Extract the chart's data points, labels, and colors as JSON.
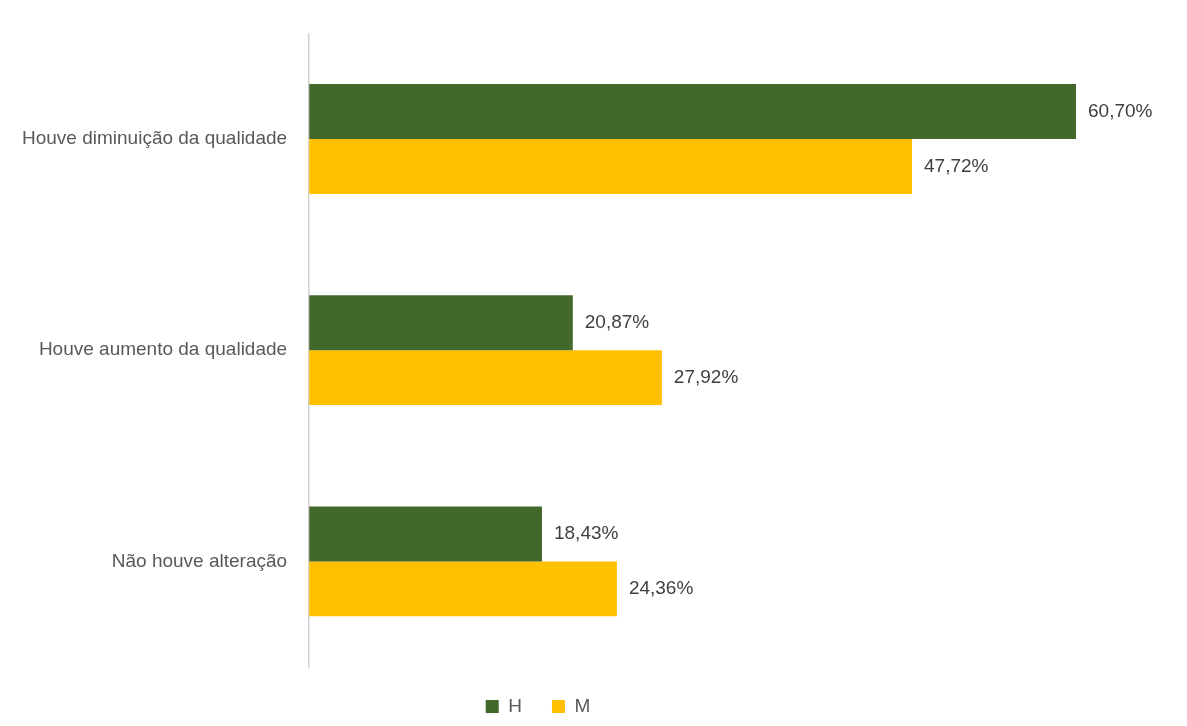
{
  "chart_data": {
    "type": "bar",
    "orientation": "horizontal",
    "categories": [
      "Houve diminuição da qualidade",
      "Houve aumento da qualidade",
      "Não houve alteração"
    ],
    "series": [
      {
        "name": "H",
        "color": "#43682b",
        "values": [
          60.7,
          20.87,
          18.43
        ],
        "value_labels": [
          "60,70%",
          "20,87%",
          "18,43%"
        ]
      },
      {
        "name": "M",
        "color": "#ffc000",
        "values": [
          47.72,
          27.92,
          24.36
        ],
        "value_labels": [
          "47,72%",
          "27,92%",
          "24,36%"
        ]
      }
    ],
    "legend": "bottom",
    "grid": false
  }
}
